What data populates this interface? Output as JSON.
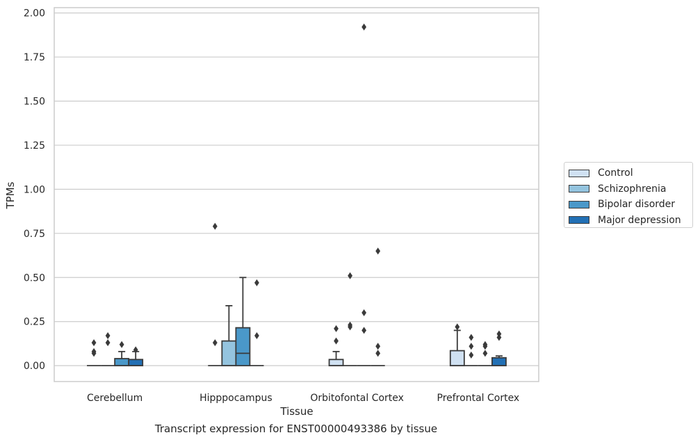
{
  "caption": "Transcript expression for ENST00000493386 by tissue",
  "colors": {
    "Control": "#d0e1f2",
    "Schizophrenia": "#94c4df",
    "Bipolar disorder": "#4a98c9",
    "Major depression": "#2270b5",
    "line": "#3a3a3a",
    "grid": "#cccccc",
    "spine": "#cccccc"
  },
  "legend": {
    "placement": "right",
    "items": [
      {
        "label": "Control",
        "color": "#d0e1f2"
      },
      {
        "label": "Schizophrenia",
        "color": "#94c4df"
      },
      {
        "label": "Bipolar disorder",
        "color": "#4a98c9"
      },
      {
        "label": "Major depression",
        "color": "#2270b5"
      }
    ]
  },
  "chart_data": {
    "type": "box",
    "title": "",
    "xlabel": "Tissue",
    "ylabel": "TPMs",
    "ylim": [
      -0.09,
      2.03
    ],
    "yticks": [
      0.0,
      0.25,
      0.5,
      0.75,
      1.0,
      1.25,
      1.5,
      1.75,
      2.0
    ],
    "ytick_labels": [
      "0.00",
      "0.25",
      "0.50",
      "0.75",
      "1.00",
      "1.25",
      "1.50",
      "1.75",
      "2.00"
    ],
    "grid": true,
    "categories": [
      "Cerebellum",
      "Hipppocampus",
      "Orbitofontal Cortex",
      "Prefrontal Cortex"
    ],
    "series": [
      {
        "name": "Control",
        "boxes": [
          {
            "q1": 0,
            "median": 0,
            "q3": 0,
            "whisker_low": 0,
            "whisker_high": 0,
            "outliers": [
              0.13,
              0.08,
              0.07
            ]
          },
          {
            "q1": 0,
            "median": 0,
            "q3": 0,
            "whisker_low": 0,
            "whisker_high": 0,
            "outliers": [
              0.79,
              0.13
            ]
          },
          {
            "q1": 0,
            "median": 0,
            "q3": 0.035,
            "whisker_low": 0,
            "whisker_high": 0.08,
            "outliers": [
              0.21,
              0.14
            ]
          },
          {
            "q1": 0,
            "median": 0,
            "q3": 0.085,
            "whisker_low": 0,
            "whisker_high": 0.2,
            "outliers": [
              0.22
            ]
          }
        ]
      },
      {
        "name": "Schizophrenia",
        "boxes": [
          {
            "q1": 0,
            "median": 0,
            "q3": 0,
            "whisker_low": 0,
            "whisker_high": 0,
            "outliers": [
              0.17,
              0.13
            ]
          },
          {
            "q1": 0,
            "median": 0,
            "q3": 0.14,
            "whisker_low": 0,
            "whisker_high": 0.34,
            "outliers": []
          },
          {
            "q1": 0,
            "median": 0,
            "q3": 0,
            "whisker_low": 0,
            "whisker_high": 0,
            "outliers": [
              0.51,
              0.23,
              0.22
            ]
          },
          {
            "q1": 0,
            "median": 0,
            "q3": 0,
            "whisker_low": 0,
            "whisker_high": 0,
            "outliers": [
              0.16,
              0.11,
              0.06
            ]
          }
        ]
      },
      {
        "name": "Bipolar disorder",
        "boxes": [
          {
            "q1": 0,
            "median": 0,
            "q3": 0.04,
            "whisker_low": 0,
            "whisker_high": 0.08,
            "outliers": [
              0.12
            ]
          },
          {
            "q1": 0,
            "median": 0.07,
            "q3": 0.215,
            "whisker_low": 0,
            "whisker_high": 0.5,
            "outliers": []
          },
          {
            "q1": 0,
            "median": 0,
            "q3": 0,
            "whisker_low": 0,
            "whisker_high": 0,
            "outliers": [
              1.92,
              0.3,
              0.2
            ]
          },
          {
            "q1": 0,
            "median": 0,
            "q3": 0,
            "whisker_low": 0,
            "whisker_high": 0,
            "outliers": [
              0.12,
              0.11,
              0.07
            ]
          }
        ]
      },
      {
        "name": "Major depression",
        "boxes": [
          {
            "q1": 0,
            "median": 0,
            "q3": 0.035,
            "whisker_low": 0,
            "whisker_high": 0.08,
            "outliers": [
              0.09
            ]
          },
          {
            "q1": 0,
            "median": 0,
            "q3": 0,
            "whisker_low": 0,
            "whisker_high": 0,
            "outliers": [
              0.47,
              0.17
            ]
          },
          {
            "q1": 0,
            "median": 0,
            "q3": 0,
            "whisker_low": 0,
            "whisker_high": 0,
            "outliers": [
              0.65,
              0.11,
              0.07
            ]
          },
          {
            "q1": 0,
            "median": 0,
            "q3": 0.045,
            "whisker_low": 0,
            "whisker_high": 0.055,
            "outliers": [
              0.18,
              0.16
            ]
          }
        ]
      }
    ]
  }
}
